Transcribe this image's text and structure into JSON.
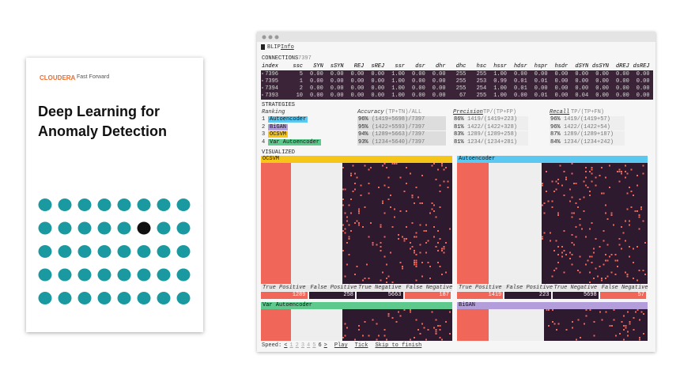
{
  "cover": {
    "brand": "CLOUDERA",
    "brand_sub": "Fast Forward",
    "title": "Deep Learning for Anomaly Detection"
  },
  "window": {
    "menu": [
      "BLIP",
      "Info"
    ]
  },
  "connections": {
    "label": "CONNECTIONS",
    "count": "7397",
    "columns": [
      "index",
      "ssc",
      "SYN",
      "sSYN",
      "REJ",
      "sREJ",
      "ssr",
      "dsr",
      "dhr",
      "dhc",
      "hsc",
      "hssr",
      "hdsr",
      "hspr",
      "hsdr",
      "dSYN",
      "dsSYN",
      "dREJ",
      "dsREJ"
    ],
    "rows": [
      [
        "7396",
        "5",
        "0.00",
        "0.00",
        "0.00",
        "0.00",
        "1.00",
        "0.00",
        "0.00",
        "255",
        "255",
        "1.00",
        "0.00",
        "0.00",
        "0.00",
        "0.00",
        "0.00",
        "0.00",
        "0.00"
      ],
      [
        "7395",
        "1",
        "0.00",
        "0.00",
        "0.00",
        "0.00",
        "1.00",
        "0.00",
        "0.00",
        "255",
        "253",
        "0.99",
        "0.01",
        "0.01",
        "0.00",
        "0.00",
        "0.00",
        "0.00",
        "0.00"
      ],
      [
        "7394",
        "2",
        "0.00",
        "0.00",
        "0.00",
        "0.00",
        "1.00",
        "0.00",
        "0.00",
        "255",
        "254",
        "1.00",
        "0.01",
        "0.00",
        "0.00",
        "0.00",
        "0.00",
        "0.00",
        "0.00"
      ],
      [
        "7393",
        "10",
        "0.00",
        "0.00",
        "0.00",
        "0.00",
        "1.00",
        "0.00",
        "0.00",
        "67",
        "255",
        "1.00",
        "0.00",
        "0.01",
        "0.00",
        "0.04",
        "0.00",
        "0.00",
        "0.00"
      ]
    ]
  },
  "strategies": {
    "label": "STRATEGIES",
    "ranking_header": "Ranking",
    "accuracy_header": "Accuracy",
    "accuracy_formula": "(TP+TN)/ALL",
    "precision_header": "Precision",
    "precision_formula": "TP/(TP+FP)",
    "recall_header": "Recall",
    "recall_formula": "TP/(TP+FN)",
    "rows": [
      {
        "rank": "1",
        "name": "Autoencoder",
        "color": "#5ac8f0",
        "accuracy": "96%",
        "accuracy_detail": "(1419+5698)/7397",
        "precision": "86%",
        "precision_detail": "1419/(1419+223)",
        "recall": "96%",
        "recall_detail": "1419/(1419+57)"
      },
      {
        "rank": "2",
        "name": "BiGAN",
        "color": "#b39ddb",
        "accuracy": "95%",
        "accuracy_detail": "(1422+5593)/7397",
        "precision": "81%",
        "precision_detail": "1422/(1422+328)",
        "recall": "96%",
        "recall_detail": "1422/(1422+54)"
      },
      {
        "rank": "3",
        "name": "OCSVM",
        "color": "#f5c518",
        "accuracy": "94%",
        "accuracy_detail": "(1289+5663)/7397",
        "precision": "83%",
        "precision_detail": "1289/(1289+258)",
        "recall": "87%",
        "recall_detail": "1289/(1289+187)"
      },
      {
        "rank": "4",
        "name": "Var Autoencoder",
        "color": "#5dc98c",
        "accuracy": "93%",
        "accuracy_detail": "(1234+5640)/7397",
        "precision": "81%",
        "precision_detail": "1234/(1234+281)",
        "recall": "84%",
        "recall_detail": "1234/(1234+242)"
      }
    ]
  },
  "visualized": {
    "label": "VISUALIZED",
    "stat_labels": [
      "True Positive",
      "False Positive",
      "True Negative",
      "False Negative"
    ],
    "panels": [
      {
        "name": "OCSVM",
        "color": "#f5c518",
        "stats": [
          "1289",
          "258",
          "5663",
          "187"
        ]
      },
      {
        "name": "Autoencoder",
        "color": "#5ac8f0",
        "stats": [
          "1419",
          "223",
          "5698",
          "57"
        ]
      },
      {
        "name": "Var Autoencoder",
        "color": "#5dc98c"
      },
      {
        "name": "BiGAN",
        "color": "#b39ddb"
      }
    ]
  },
  "footer": {
    "speed": "Speed:",
    "prev": "<",
    "speeds": [
      "1",
      "2",
      "3",
      "4",
      "5",
      "6"
    ],
    "next": ">",
    "actions": [
      "Play",
      "Tick",
      "Skip to finish"
    ]
  }
}
